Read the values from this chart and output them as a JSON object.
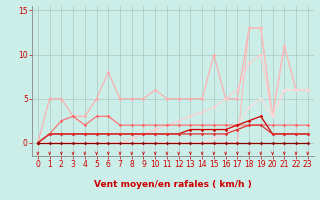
{
  "background_color": "#cceee8",
  "grid_color": "#aabbb8",
  "xlabel": "Vent moyen/en rafales ( km/h )",
  "xlim": [
    -0.5,
    23.5
  ],
  "ylim": [
    -1.5,
    15.5
  ],
  "yticks": [
    0,
    5,
    10,
    15
  ],
  "xticks": [
    0,
    1,
    2,
    3,
    4,
    5,
    6,
    7,
    8,
    9,
    10,
    11,
    12,
    13,
    14,
    15,
    16,
    17,
    18,
    19,
    20,
    21,
    22,
    23
  ],
  "x": [
    0,
    1,
    2,
    3,
    4,
    5,
    6,
    7,
    8,
    9,
    10,
    11,
    12,
    13,
    14,
    15,
    16,
    17,
    18,
    19,
    20,
    21,
    22,
    23
  ],
  "series": [
    {
      "name": "light_pink_top",
      "y": [
        0,
        5,
        5,
        3,
        3,
        5,
        8,
        5,
        5,
        5,
        6,
        5,
        5,
        5,
        5,
        10,
        5,
        5,
        13,
        13,
        3,
        11,
        6,
        6
      ],
      "color": "#ffaaaa",
      "lw": 0.8,
      "marker": "D",
      "ms": 1.8
    },
    {
      "name": "light_pink_rising1",
      "y": [
        0,
        0,
        0,
        0,
        0,
        0,
        0,
        0,
        0,
        0,
        0,
        0,
        0,
        0,
        0,
        0,
        0,
        0,
        13,
        13,
        3,
        11,
        6,
        6
      ],
      "color": "#ffbbbb",
      "lw": 0.8,
      "marker": "D",
      "ms": 1.8
    },
    {
      "name": "light_pink_rising2",
      "y": [
        0,
        0,
        0,
        0,
        0,
        0,
        0,
        0,
        0.5,
        1,
        1.5,
        2,
        2.5,
        3,
        3.5,
        4,
        5,
        6,
        9,
        10,
        3,
        6,
        6,
        6
      ],
      "color": "#ffcccc",
      "lw": 0.8,
      "marker": "D",
      "ms": 1.8
    },
    {
      "name": "light_pink_rising3",
      "y": [
        0,
        0,
        0,
        0,
        0,
        0,
        0,
        0,
        0,
        0,
        0,
        0,
        0,
        0,
        0,
        0.5,
        1,
        2,
        4,
        5,
        3,
        6,
        6,
        6
      ],
      "color": "#ffdddd",
      "lw": 0.8,
      "marker": "D",
      "ms": 1.8
    },
    {
      "name": "medium_red_jagged",
      "y": [
        0,
        1,
        2.5,
        3,
        2,
        3,
        3,
        2,
        2,
        2,
        2,
        2,
        2,
        2,
        2,
        2,
        2,
        2,
        2,
        2,
        2,
        2,
        2,
        2
      ],
      "color": "#ff6666",
      "lw": 0.8,
      "marker": "D",
      "ms": 1.8
    },
    {
      "name": "red_mid1",
      "y": [
        0,
        1,
        1,
        1,
        1,
        1,
        1,
        1,
        1,
        1,
        1,
        1,
        1,
        1.5,
        1.5,
        1.5,
        1.5,
        2,
        2.5,
        3,
        1,
        1,
        1,
        1
      ],
      "color": "#cc0000",
      "lw": 0.9,
      "marker": "D",
      "ms": 1.8
    },
    {
      "name": "red_mid2",
      "y": [
        0,
        1,
        1,
        1,
        1,
        1,
        1,
        1,
        1,
        1,
        1,
        1,
        1,
        1,
        1,
        1,
        1,
        1.5,
        2,
        2,
        1,
        1,
        1,
        1
      ],
      "color": "#dd3333",
      "lw": 0.9,
      "marker": "D",
      "ms": 1.8
    },
    {
      "name": "dark_red_base",
      "y": [
        0,
        0,
        0,
        0,
        0,
        0,
        0,
        0,
        0,
        0,
        0,
        0,
        0,
        0,
        0,
        0,
        0,
        0,
        0,
        0,
        0,
        0,
        0,
        0
      ],
      "color": "#880000",
      "lw": 0.9,
      "marker": "D",
      "ms": 1.8
    }
  ],
  "label_color": "#cc0000",
  "tick_color": "#cc0000",
  "label_fontsize": 6.5,
  "tick_fontsize": 5.5,
  "arrow_color": "#cc0000"
}
